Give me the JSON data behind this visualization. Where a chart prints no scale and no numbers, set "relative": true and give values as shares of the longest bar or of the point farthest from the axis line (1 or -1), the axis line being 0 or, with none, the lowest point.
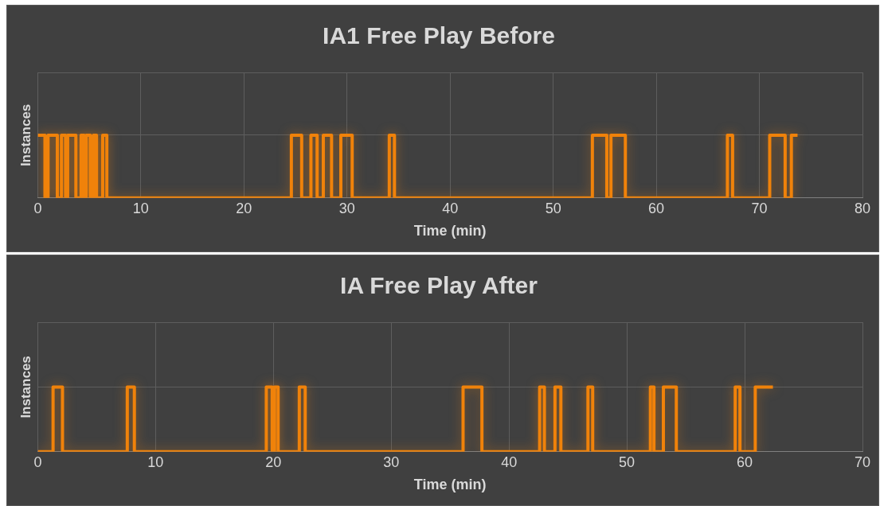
{
  "chart_data": [
    {
      "type": "step",
      "title": "IA1 Free Play Before",
      "xlabel": "Time (min)",
      "ylabel": "Instances",
      "relative": true,
      "grid": true,
      "legend": false,
      "tick_labels": "x",
      "xlim": [
        0,
        80
      ],
      "xticks": [
        0,
        10,
        20,
        30,
        40,
        50,
        60,
        70,
        80
      ],
      "series": [
        {
          "color": "#f0820a",
          "x": [
            0,
            0.7,
            1.0,
            1.9,
            2.3,
            2.7,
            2.9,
            3.7,
            4.2,
            4.5,
            4.7,
            5.1,
            5.4,
            5.7,
            6.3,
            6.7,
            24.6,
            25.6,
            26.5,
            27.1,
            27.7,
            28.5,
            29.4,
            30.5,
            34.1,
            34.6,
            53.8,
            55.2,
            55.6,
            57.0,
            66.9,
            67.4,
            71.0,
            72.5,
            73.1,
            73.7
          ],
          "values": [
            1,
            0,
            1,
            0,
            1,
            0,
            1,
            0,
            1,
            0,
            1,
            0,
            1,
            0,
            1,
            0,
            1,
            0,
            1,
            0,
            1,
            0,
            1,
            0,
            1,
            0,
            1,
            0,
            1,
            0,
            1,
            0,
            1,
            0,
            1,
            1
          ]
        }
      ]
    },
    {
      "type": "step",
      "title": "IA Free Play After",
      "xlabel": "Time (min)",
      "ylabel": "Instances",
      "relative": true,
      "grid": true,
      "legend": false,
      "tick_labels": "x",
      "xlim": [
        0,
        70
      ],
      "xticks": [
        0,
        10,
        20,
        30,
        40,
        50,
        60,
        70
      ],
      "series": [
        {
          "color": "#f0820a",
          "x": [
            0,
            1.3,
            2.1,
            7.6,
            8.2,
            19.4,
            19.9,
            20.1,
            20.4,
            22.2,
            22.7,
            36.1,
            37.7,
            42.6,
            43.0,
            43.9,
            44.4,
            46.7,
            47.1,
            52.0,
            52.3,
            53.1,
            54.2,
            59.2,
            59.6,
            60.9,
            62.4
          ],
          "values": [
            0,
            1,
            0,
            1,
            0,
            1,
            0,
            1,
            0,
            1,
            0,
            1,
            0,
            1,
            0,
            1,
            0,
            1,
            0,
            1,
            0,
            1,
            0,
            1,
            0,
            1,
            1
          ]
        }
      ]
    }
  ]
}
